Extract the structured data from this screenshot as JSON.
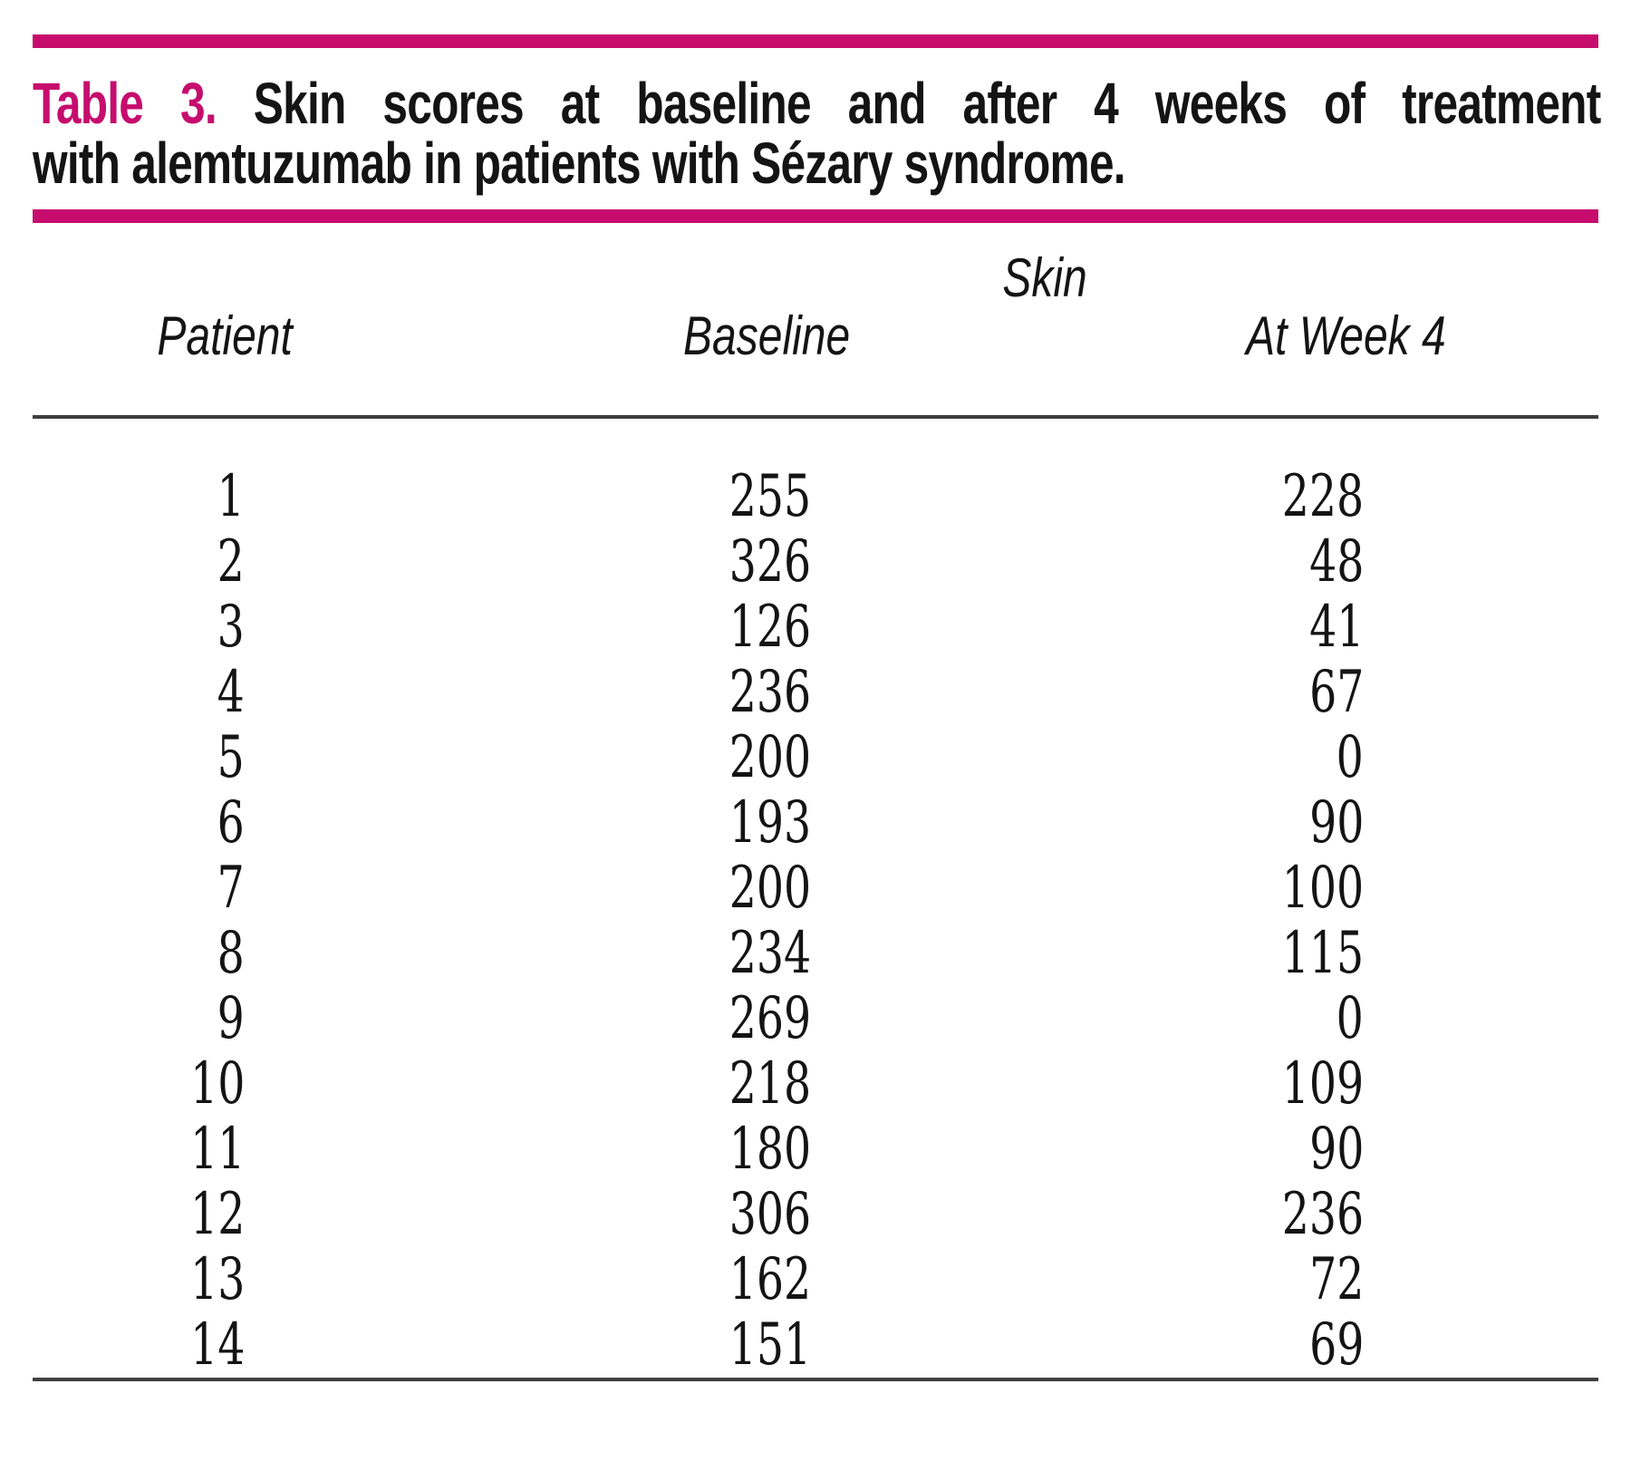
{
  "accent_color": "#C60D6E",
  "title": {
    "label": "Table 3.",
    "line1_rest": "Skin scores at baseline and after 4 weeks of treatment",
    "line2": "with alemtuzumab in patients with Sézary syndrome."
  },
  "table": {
    "group_header": "Skin",
    "columns": [
      "Patient",
      "Baseline",
      "At Week 4"
    ],
    "rows": [
      {
        "patient": "1",
        "baseline": "255",
        "week4": "228"
      },
      {
        "patient": "2",
        "baseline": "326",
        "week4": "48"
      },
      {
        "patient": "3",
        "baseline": "126",
        "week4": "41"
      },
      {
        "patient": "4",
        "baseline": "236",
        "week4": "67"
      },
      {
        "patient": "5",
        "baseline": "200",
        "week4": "0"
      },
      {
        "patient": "6",
        "baseline": "193",
        "week4": "90"
      },
      {
        "patient": "7",
        "baseline": "200",
        "week4": "100"
      },
      {
        "patient": "8",
        "baseline": "234",
        "week4": "115"
      },
      {
        "patient": "9",
        "baseline": "269",
        "week4": "0"
      },
      {
        "patient": "10",
        "baseline": "218",
        "week4": "109"
      },
      {
        "patient": "11",
        "baseline": "180",
        "week4": "90"
      },
      {
        "patient": "12",
        "baseline": "306",
        "week4": "236"
      },
      {
        "patient": "13",
        "baseline": "162",
        "week4": "72"
      },
      {
        "patient": "14",
        "baseline": "151",
        "week4": "69"
      }
    ]
  }
}
